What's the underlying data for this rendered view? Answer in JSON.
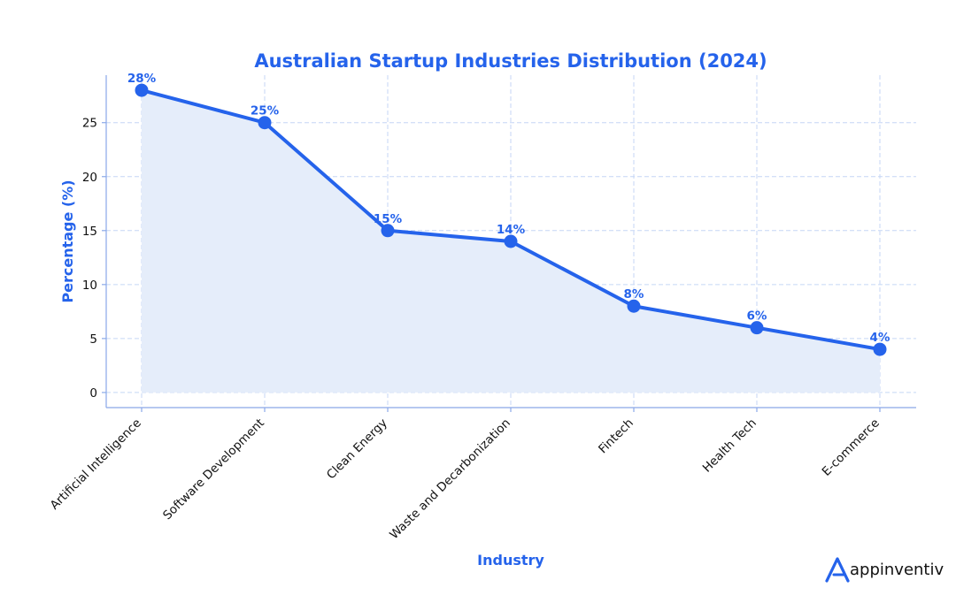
{
  "chart_data": {
    "type": "line",
    "title": "Australian Startup Industries Distribution (2024)",
    "xlabel": "Industry",
    "ylabel": "Percentage (%)",
    "categories": [
      "Artificial Intelligence",
      "Software Development",
      "Clean Energy",
      "Waste and Decarbonization",
      "Fintech",
      "Health Tech",
      "E-commerce"
    ],
    "values": [
      28,
      25,
      15,
      14,
      8,
      6,
      4
    ],
    "data_labels": [
      "28%",
      "25%",
      "15%",
      "14%",
      "8%",
      "6%",
      "4%"
    ],
    "yticks": [
      0,
      5,
      10,
      15,
      20,
      25
    ],
    "ylim": [
      -1.4,
      29.4
    ],
    "grid": true,
    "area_fill": true,
    "colors": {
      "line": "#2563eb",
      "fill": "#e5edfa",
      "grid": "#c5d6f5",
      "spine": "#8aa8e8"
    }
  },
  "brand": {
    "name": "appinventiv",
    "logo_icon": "appinventiv-logo-icon"
  }
}
